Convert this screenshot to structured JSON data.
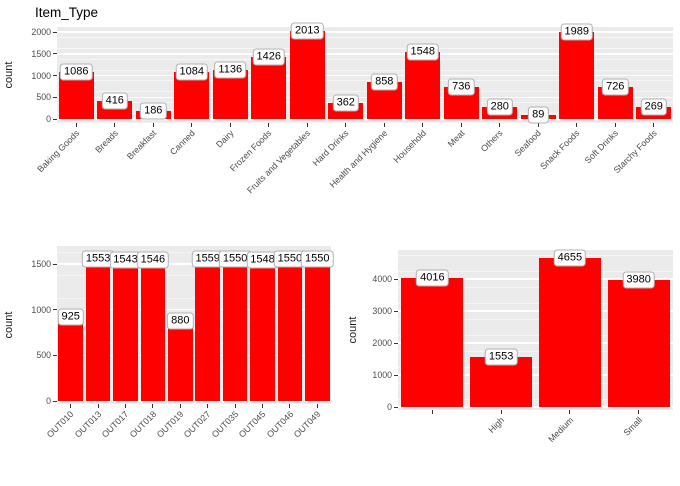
{
  "figure": {
    "title": "Item_Type",
    "background": "#ffffff"
  },
  "colors": {
    "bar_fill": "#ff0000",
    "panel_bg": "#ebebeb",
    "grid_major": "#ffffff",
    "grid_minor": "#ffffff",
    "axis_text": "#4d4d4d",
    "tick_mark": "#333333",
    "title_text": "#000000",
    "value_label_text": "#000000",
    "value_label_bg": "#ffffff",
    "value_label_border": "#b0b0b0"
  },
  "chart_data": [
    {
      "type": "bar",
      "title": "Item_Type",
      "xlabel": "",
      "ylabel": "count",
      "categories": [
        "Baking Goods",
        "Breads",
        "Breakfast",
        "Canned",
        "Dairy",
        "Frozen Foods",
        "Fruits and Vegetables",
        "Hard Drinks",
        "Health and Hygiene",
        "Household",
        "Meat",
        "Others",
        "Seafood",
        "Snack Foods",
        "Soft Drinks",
        "Starchy Foods"
      ],
      "values": [
        1086,
        416,
        186,
        1084,
        1136,
        1426,
        2013,
        362,
        858,
        1548,
        736,
        280,
        89,
        1989,
        726,
        269
      ],
      "yticks": [
        0,
        500,
        1000,
        1500,
        2000
      ],
      "ylim": [
        0,
        2114
      ],
      "grid": "on",
      "legend": "none",
      "bar_value_labels": true
    },
    {
      "type": "bar",
      "title": "",
      "xlabel": "",
      "ylabel": "count",
      "categories": [
        "OUT010",
        "OUT013",
        "OUT017",
        "OUT018",
        "OUT019",
        "OUT027",
        "OUT035",
        "OUT045",
        "OUT046",
        "OUT049"
      ],
      "values": [
        925,
        1553,
        1543,
        1546,
        880,
        1559,
        1550,
        1548,
        1550,
        1550
      ],
      "yticks": [
        0,
        500,
        1000,
        1500
      ],
      "ylim": [
        0,
        1637
      ],
      "grid": "on",
      "legend": "none",
      "bar_value_labels": true
    },
    {
      "type": "bar",
      "title": "",
      "xlabel": "",
      "ylabel": "count",
      "categories": [
        "",
        "High",
        "Medium",
        "Small"
      ],
      "values": [
        4016,
        1553,
        4655,
        3980
      ],
      "yticks": [
        0,
        1000,
        2000,
        3000,
        4000
      ],
      "ylim": [
        0,
        4888
      ],
      "grid": "on",
      "legend": "none",
      "bar_value_labels": true
    }
  ]
}
